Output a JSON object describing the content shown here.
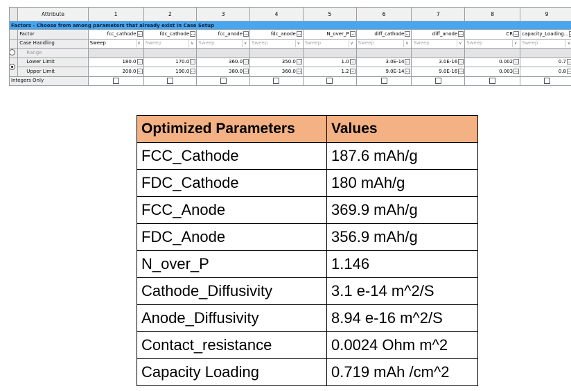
{
  "case_setup": {
    "attribute_label": "Attribute",
    "columns": [
      "1",
      "2",
      "3",
      "4",
      "5",
      "6",
      "7",
      "8",
      "9"
    ],
    "banner": "Factors - Choose from among parameters that already exist in Case Setup",
    "row_labels": {
      "factor": "Factor",
      "case_handling": "Case Handling",
      "range": "Range",
      "lower_limit": "Lower Limit",
      "upper_limit": "Upper Limit",
      "integers_only": "Integers Only"
    },
    "factors": [
      "fcc_cathode",
      "fdc_cathode",
      "fcc_anode",
      "fdc_anode",
      "N_over_P",
      "diff_cathode",
      "diff_anode",
      "CR",
      "capacity_Loading..."
    ],
    "case_handling": [
      "Sweep",
      "Sweep",
      "Sweep",
      "Sweep",
      "Sweep",
      "Sweep",
      "Sweep",
      "Sweep",
      "Sweep"
    ],
    "lower_limit": [
      "180.0",
      "170.0",
      "360.0",
      "350.0",
      "1.0",
      "3.0E-14",
      "3.0E-16",
      "0.002",
      "0.7"
    ],
    "upper_limit": [
      "200.0",
      "190.0",
      "380.0",
      "360.0",
      "1.2",
      "9.0E-14",
      "9.0E-16",
      "0.003",
      "0.8"
    ],
    "ellipsis": "...",
    "dropdown_glyph": "∨",
    "selected_mode": "limits"
  },
  "optimized": {
    "headers": {
      "param": "Optimized Parameters",
      "value": "Values"
    },
    "rows": [
      {
        "param": "FCC_Cathode",
        "value": "187.6 mAh/g"
      },
      {
        "param": "FDC_Cathode",
        "value": "180 mAh/g"
      },
      {
        "param": "FCC_Anode",
        "value": "369.9 mAh/g"
      },
      {
        "param": "FDC_Anode",
        "value": "356.9 mAh/g"
      },
      {
        "param": "N_over_P",
        "value": "1.146"
      },
      {
        "param": "Cathode_Diffusivity",
        "value": "3.1 e-14 m^2/S"
      },
      {
        "param": "Anode_Diffusivity",
        "value": "8.94 e-16 m^2/S"
      },
      {
        "param": "Contact_resistance",
        "value": "0.0024 Ohm m^2"
      },
      {
        "param": "Capacity Loading",
        "value": "0.719 mAh /cm^2"
      }
    ]
  }
}
